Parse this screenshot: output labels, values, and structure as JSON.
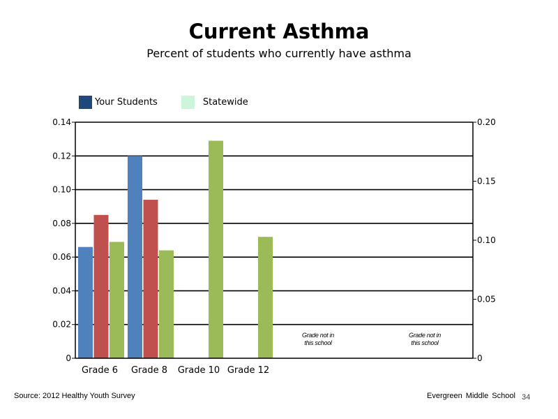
{
  "chart_data": {
    "type": "bar",
    "title": "Current Asthma",
    "subtitle": "Percent of students who currently have asthma",
    "categories": [
      "Grade 6",
      "Grade 8",
      "Grade 10",
      "Grade 12"
    ],
    "series": [
      {
        "name": "",
        "axis": "left",
        "color": "#4f81bd",
        "values": [
          0.066,
          0.12,
          null,
          null
        ]
      },
      {
        "name": "",
        "axis": "left",
        "color": "#c0504d",
        "values": [
          0.085,
          0.094,
          null,
          null
        ]
      },
      {
        "name": "",
        "axis": "left",
        "color": "#9bbb59",
        "values": [
          0.069,
          0.064,
          0.129,
          0.072
        ]
      }
    ],
    "legend": [
      {
        "label": "Your Students",
        "color": "#1f497d"
      },
      {
        "label": "Statewide",
        "color": "#ccf5dc"
      }
    ],
    "y_left": {
      "ylim": [
        0,
        0.14
      ],
      "ticks": [
        "0",
        "0.02",
        "0.04",
        "0.06",
        "0.08",
        "0.10",
        "0.12",
        "0.14"
      ]
    },
    "y_right": {
      "ylim": [
        0,
        0.2
      ],
      "ticks": [
        "0",
        "0.05",
        "0.10",
        "0.15",
        "0.20"
      ]
    },
    "grid": true,
    "annotations": [
      {
        "line1": "Grade not in",
        "line2": "this school"
      },
      {
        "line1": "Grade not in",
        "line2": "this school"
      }
    ]
  },
  "footer": {
    "source": "Source: 2012 Healthy Youth Survey",
    "school": "Evergreen Middle School",
    "page_number": "34"
  }
}
